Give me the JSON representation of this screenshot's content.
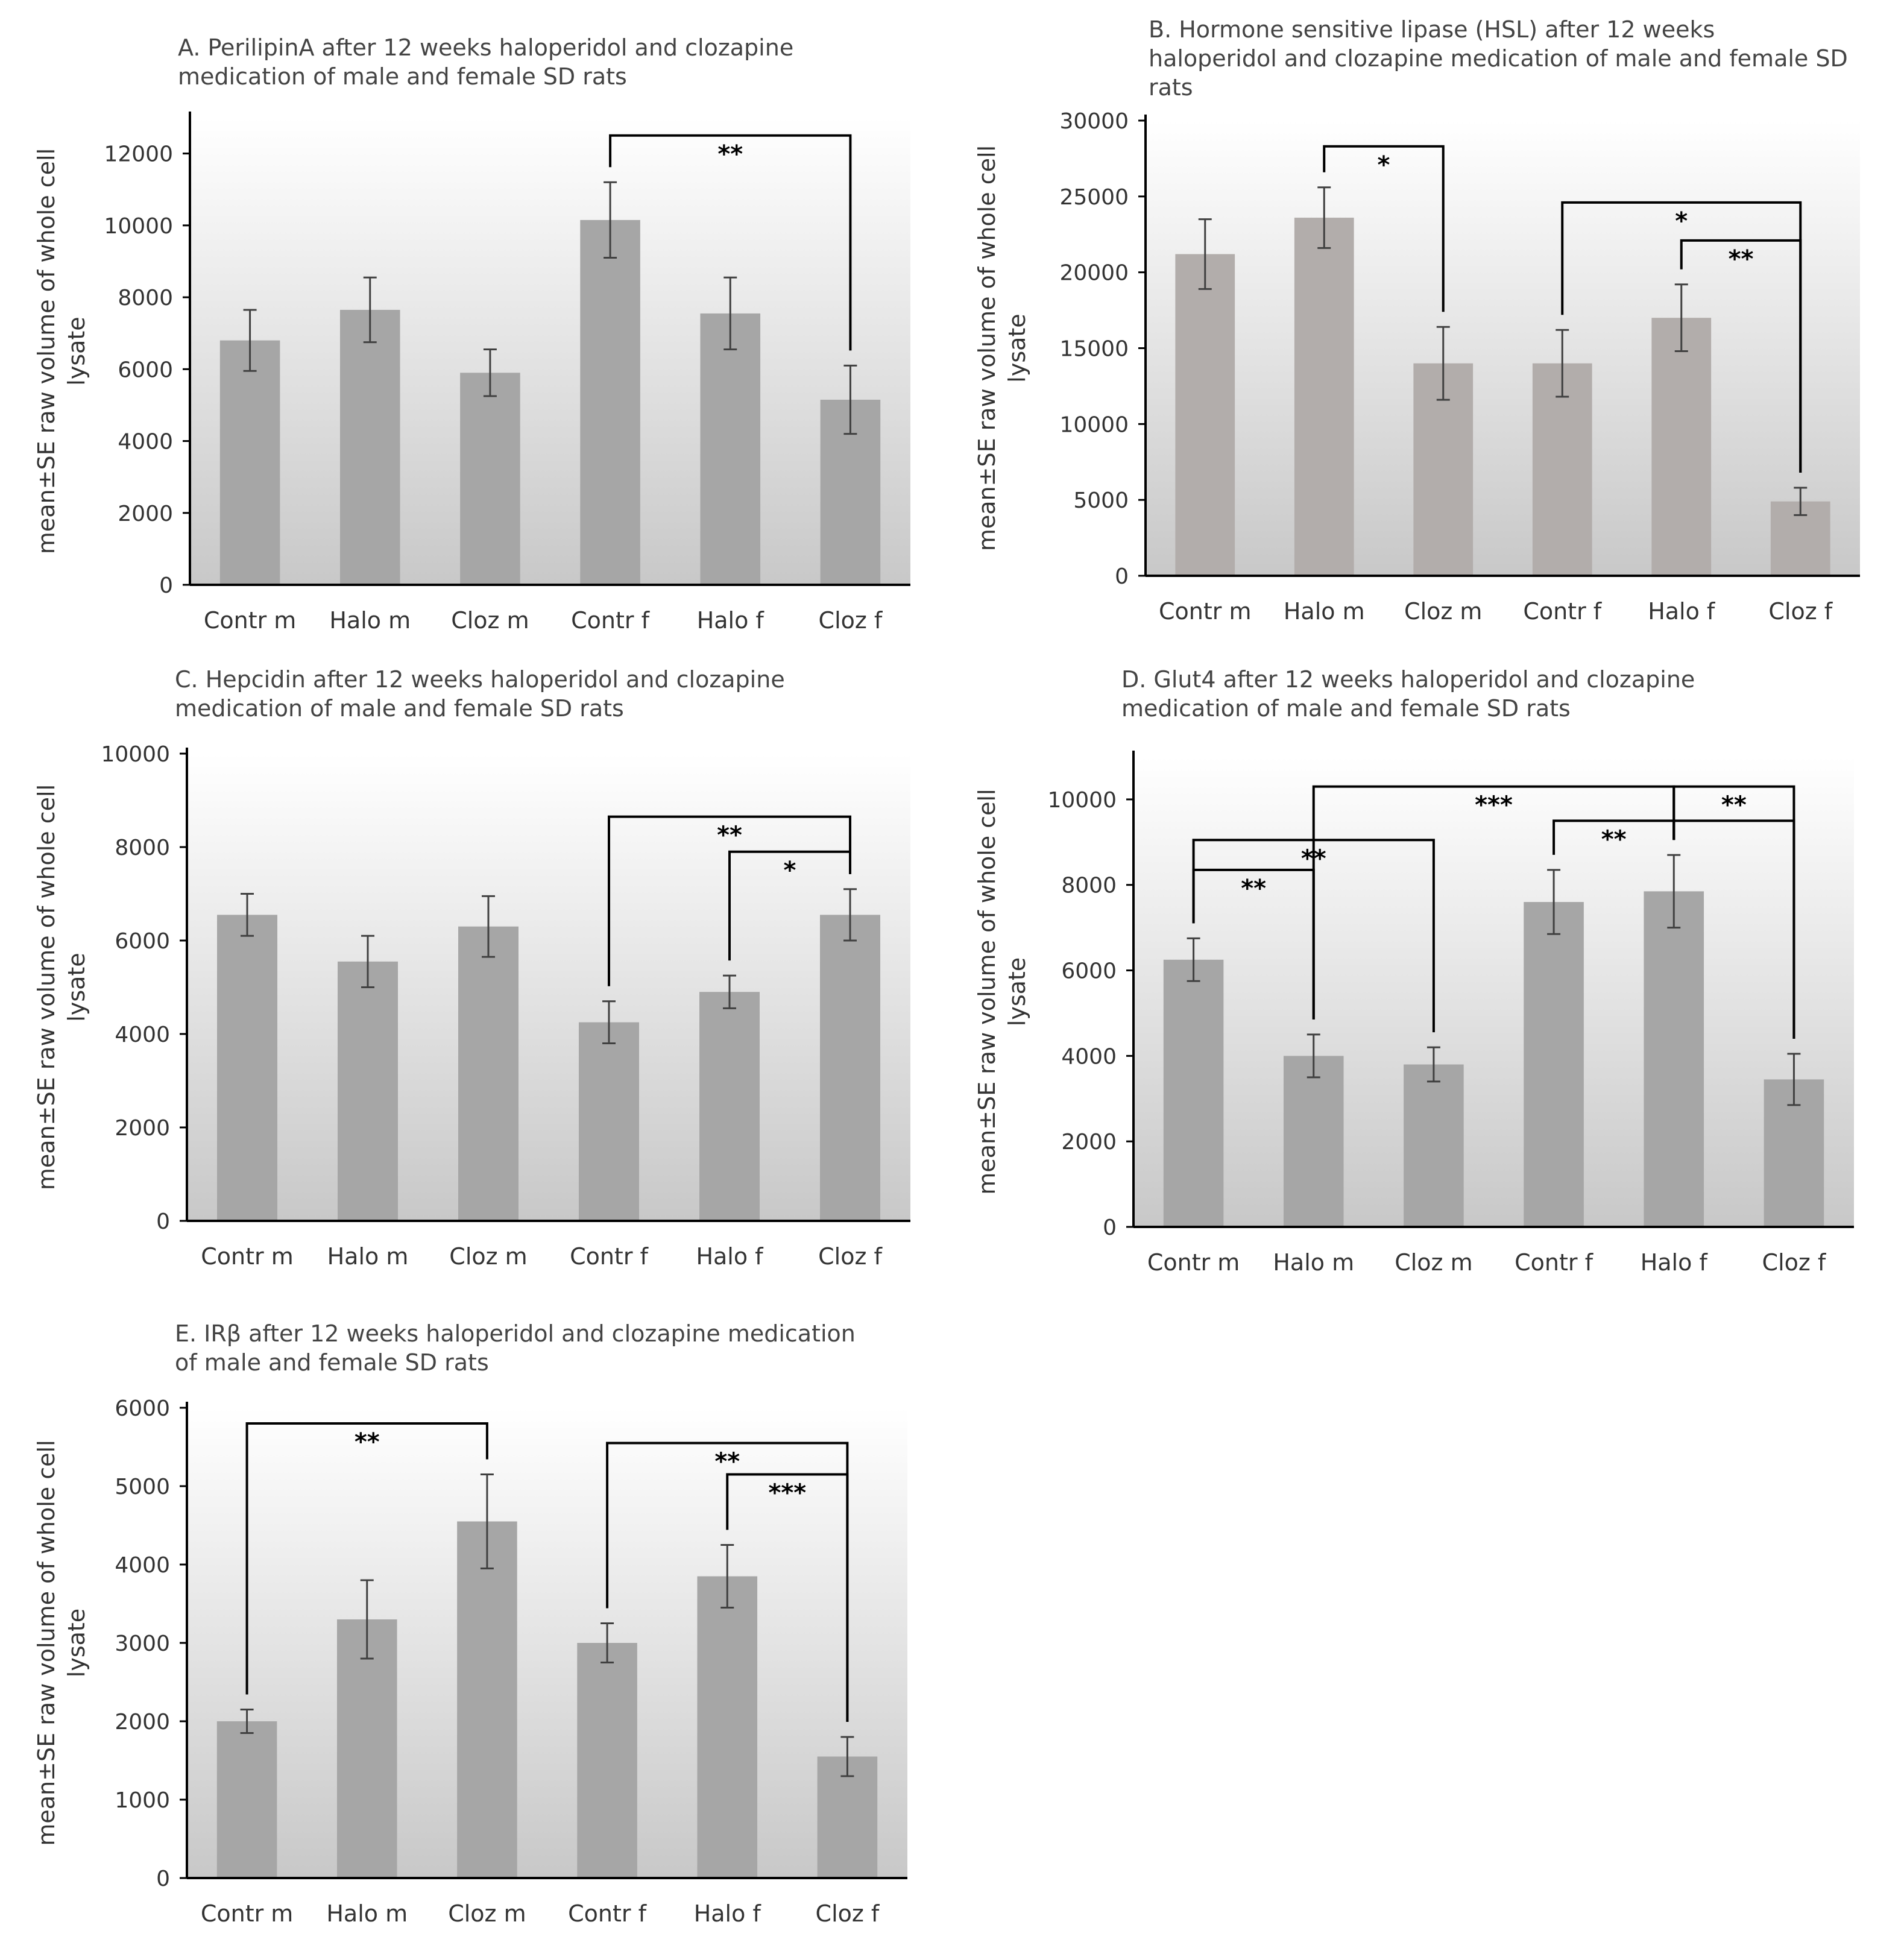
{
  "colors": {
    "bar": "#a6a6a6",
    "bar_hsl": "#b2adab",
    "axis": "#000000",
    "bracket": "#000000",
    "grad_top": "#ffffff",
    "grad_bottom": "#c8c8c8"
  },
  "chart_data": [
    {
      "id": "A",
      "type": "bar",
      "title_lines": [
        "A. PerilipinA after 12 weeks haloperidol and clozapine",
        "medication of male and female SD rats"
      ],
      "ylabel_lines": [
        "mean±SE raw volume of whole cell",
        "lysate"
      ],
      "categories": [
        "Contr m",
        "Halo m",
        "Cloz m",
        "Contr f",
        "Halo f",
        "Cloz f"
      ],
      "values": [
        6800,
        7650,
        5900,
        10150,
        7550,
        5150
      ],
      "errors": [
        850,
        900,
        650,
        1050,
        1000,
        950
      ],
      "ylim": [
        0,
        13000
      ],
      "yticks": [
        0,
        2000,
        4000,
        6000,
        8000,
        10000,
        12000
      ],
      "ytick_labels": [
        "0",
        "2000",
        "4000",
        "6000",
        "8000",
        "10000",
        "12000"
      ],
      "brackets": [
        {
          "from": 3,
          "to": 5,
          "y": 12500,
          "label": "**"
        }
      ]
    },
    {
      "id": "B",
      "type": "bar",
      "title_lines": [
        "B. Hormone sensitive lipase (HSL) after 12 weeks",
        "haloperidol and clozapine medication of male and female SD",
        "rats"
      ],
      "ylabel_lines": [
        "mean±SE raw volume of whole cell",
        "lysate"
      ],
      "categories": [
        "Contr m",
        "Halo m",
        "Cloz m",
        "Contr f",
        "Halo f",
        "Cloz f"
      ],
      "values": [
        21200,
        23600,
        14000,
        14000,
        17000,
        4900
      ],
      "errors": [
        2300,
        2000,
        2400,
        2200,
        2200,
        900
      ],
      "ylim": [
        0,
        30000
      ],
      "yticks": [
        0,
        5000,
        10000,
        15000,
        20000,
        25000,
        30000
      ],
      "ytick_labels": [
        "0",
        "5000",
        "10000",
        "15000",
        "20000",
        "25000",
        "30000"
      ],
      "brackets": [
        {
          "from": 1,
          "to": 2,
          "y": 28300,
          "label": "*"
        },
        {
          "from": 3,
          "to": 5,
          "y": 24600,
          "label": "*"
        },
        {
          "from": 4,
          "to": 5,
          "y": 22100,
          "label": "**"
        }
      ]
    },
    {
      "id": "C",
      "type": "bar",
      "title_lines": [
        "C. Hepcidin after 12 weeks haloperidol and clozapine",
        "medication of male and female SD rats"
      ],
      "ylabel_lines": [
        "mean±SE raw volume of whole cell",
        "lysate"
      ],
      "categories": [
        "Contr m",
        "Halo m",
        "Cloz m",
        "Contr f",
        "Halo f",
        "Cloz f"
      ],
      "values": [
        6550,
        5550,
        6300,
        4250,
        4900,
        6550
      ],
      "errors": [
        450,
        550,
        650,
        450,
        350,
        550
      ],
      "ylim": [
        0,
        10000
      ],
      "yticks": [
        0,
        2000,
        4000,
        6000,
        8000,
        10000
      ],
      "ytick_labels": [
        "0",
        "2000",
        "4000",
        "6000",
        "8000",
        "10000"
      ],
      "brackets": [
        {
          "from": 3,
          "to": 5,
          "y": 8650,
          "label": "**"
        },
        {
          "from": 4,
          "to": 5,
          "y": 7900,
          "label": "*"
        }
      ]
    },
    {
      "id": "D",
      "type": "bar",
      "title_lines": [
        "D. Glut4 after 12 weeks haloperidol and clozapine",
        "medication of male and female SD rats"
      ],
      "ylabel_lines": [
        "mean±SE raw volume of whole cell",
        "lysate"
      ],
      "categories": [
        "Contr m",
        "Halo m",
        "Cloz m",
        "Contr f",
        "Halo f",
        "Cloz f"
      ],
      "values": [
        6250,
        4000,
        3800,
        7600,
        7850,
        3450
      ],
      "errors": [
        500,
        500,
        400,
        750,
        850,
        600
      ],
      "ylim": [
        0,
        11000
      ],
      "yticks": [
        0,
        2000,
        4000,
        6000,
        8000,
        10000
      ],
      "ytick_labels": [
        "0",
        "2000",
        "4000",
        "6000",
        "8000",
        "10000"
      ],
      "brackets": [
        {
          "from": 1,
          "to": 4,
          "y": 10300,
          "label": "***"
        },
        {
          "from": 4,
          "to": 5,
          "y": 10300,
          "label": "**"
        },
        {
          "from": 0,
          "to": 2,
          "y": 9050,
          "label": "**"
        },
        {
          "from": 3,
          "to": 4,
          "y": 9500,
          "label": "**"
        },
        {
          "from": 0,
          "to": 1,
          "y": 8350,
          "label": "**"
        },
        {
          "from": 4,
          "to": 5,
          "y": 9500,
          "label": ""
        }
      ]
    },
    {
      "id": "E",
      "type": "bar",
      "title_lines": [
        "E. IRβ after 12 weeks haloperidol and clozapine medication",
        "of male and female SD rats"
      ],
      "ylabel_lines": [
        "mean±SE raw volume of whole cell",
        "lysate"
      ],
      "categories": [
        "Contr m",
        "Halo m",
        "Cloz m",
        "Contr f",
        "Halo f",
        "Cloz f"
      ],
      "values": [
        2000,
        3300,
        4550,
        3000,
        3850,
        1550
      ],
      "errors": [
        150,
        500,
        600,
        250,
        400,
        250
      ],
      "ylim": [
        0,
        6000
      ],
      "yticks": [
        0,
        1000,
        2000,
        3000,
        4000,
        5000,
        6000
      ],
      "ytick_labels": [
        "0",
        "1000",
        "2000",
        "3000",
        "4000",
        "5000",
        "6000"
      ],
      "brackets": [
        {
          "from": 0,
          "to": 2,
          "y": 5800,
          "label": "**"
        },
        {
          "from": 3,
          "to": 5,
          "y": 5550,
          "label": "**"
        },
        {
          "from": 4,
          "to": 5,
          "y": 5150,
          "label": "***"
        }
      ]
    }
  ]
}
